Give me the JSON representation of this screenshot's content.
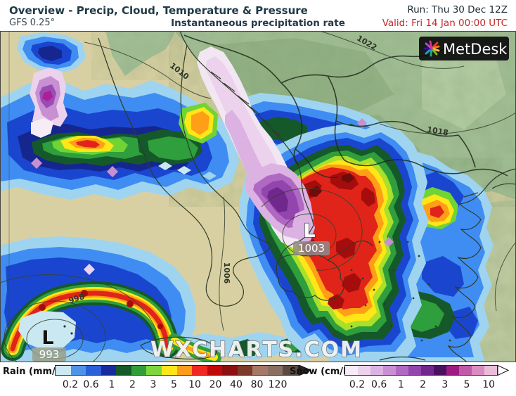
{
  "header": {
    "title": "Overview - Precip, Cloud, Temperature & Pressure",
    "model": "GFS 0.25°",
    "variable": "Instantaneous precipitation rate",
    "run": "Run: Thu 30 Dec 12Z",
    "valid": "Valid: Fri 14 Jan 00:00 UTC",
    "valid_color": "#c62828",
    "title_color": "#203a46"
  },
  "map": {
    "watermark": "WXCHARTS.COM",
    "logo_text": "MetDesk",
    "isobar_labels": [
      {
        "text": "1010"
      },
      {
        "text": "1022"
      },
      {
        "text": "1018"
      },
      {
        "text": "1006"
      },
      {
        "text": "998"
      }
    ],
    "lows": [
      {
        "symbol": "L",
        "pressure": "1003"
      },
      {
        "symbol": "L",
        "pressure": "993"
      }
    ]
  },
  "legend": {
    "rain": {
      "label": "Rain (mm/hr)",
      "ticks": [
        "0.2",
        "0.6",
        "1",
        "2",
        "3",
        "5",
        "10",
        "20",
        "40",
        "80",
        "120"
      ],
      "colors": [
        "#cbe9f3",
        "#4f93e8",
        "#2a5fd8",
        "#182a9e",
        "#155a28",
        "#2f9e38",
        "#7ed63e",
        "#ffe619",
        "#ff9c1c",
        "#ee2922",
        "#c00a0a",
        "#8c1010",
        "#7c3a2a",
        "#a57868",
        "#8a7062",
        "#5a4a40"
      ],
      "arrow_color": "#2a2420"
    },
    "snow": {
      "label": "Snow (cm/hr)",
      "ticks": [
        "0.2",
        "0.6",
        "1",
        "2",
        "3",
        "5",
        "10"
      ],
      "colors": [
        "#f6ecf6",
        "#ecd2ec",
        "#dcb2e2",
        "#c890d2",
        "#b069c2",
        "#9245ac",
        "#70278e",
        "#4a1160",
        "#9c1c82",
        "#c059a8",
        "#d88cc2",
        "#eabcd8"
      ],
      "arrow_color": "#ffffff"
    }
  }
}
